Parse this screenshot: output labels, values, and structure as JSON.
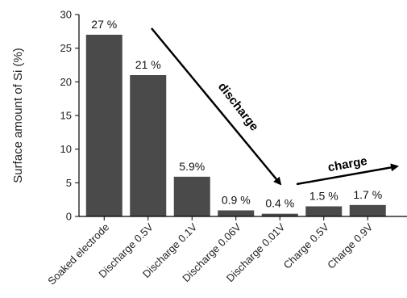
{
  "chart_data": {
    "type": "bar",
    "categories": [
      "Soaked electrode",
      "Discharge 0.5V",
      "Discharge 0.1V",
      "Discharge 0.06V",
      "Discharge 0.01V",
      "Charge 0.5V",
      "Charge 0.9V"
    ],
    "values": [
      27,
      21,
      5.9,
      0.9,
      0.4,
      1.5,
      1.7
    ],
    "data_labels": [
      "27 %",
      "21 %",
      "5.9%",
      "0.9 %",
      "0.4 %",
      "1.5 %",
      "1.7 %"
    ],
    "ylabel": "Surface amount of Si (%)",
    "ylim": [
      0,
      30
    ],
    "yticks": [
      "0",
      "5",
      "10",
      "15",
      "20",
      "25",
      "30"
    ],
    "grid": false,
    "bar_color": "#4a4a4a",
    "annotations": [
      {
        "text": "discharge",
        "from_category": 1,
        "to_category": 4
      },
      {
        "text": "charge",
        "from_category": 4,
        "to_category": 6
      }
    ]
  }
}
